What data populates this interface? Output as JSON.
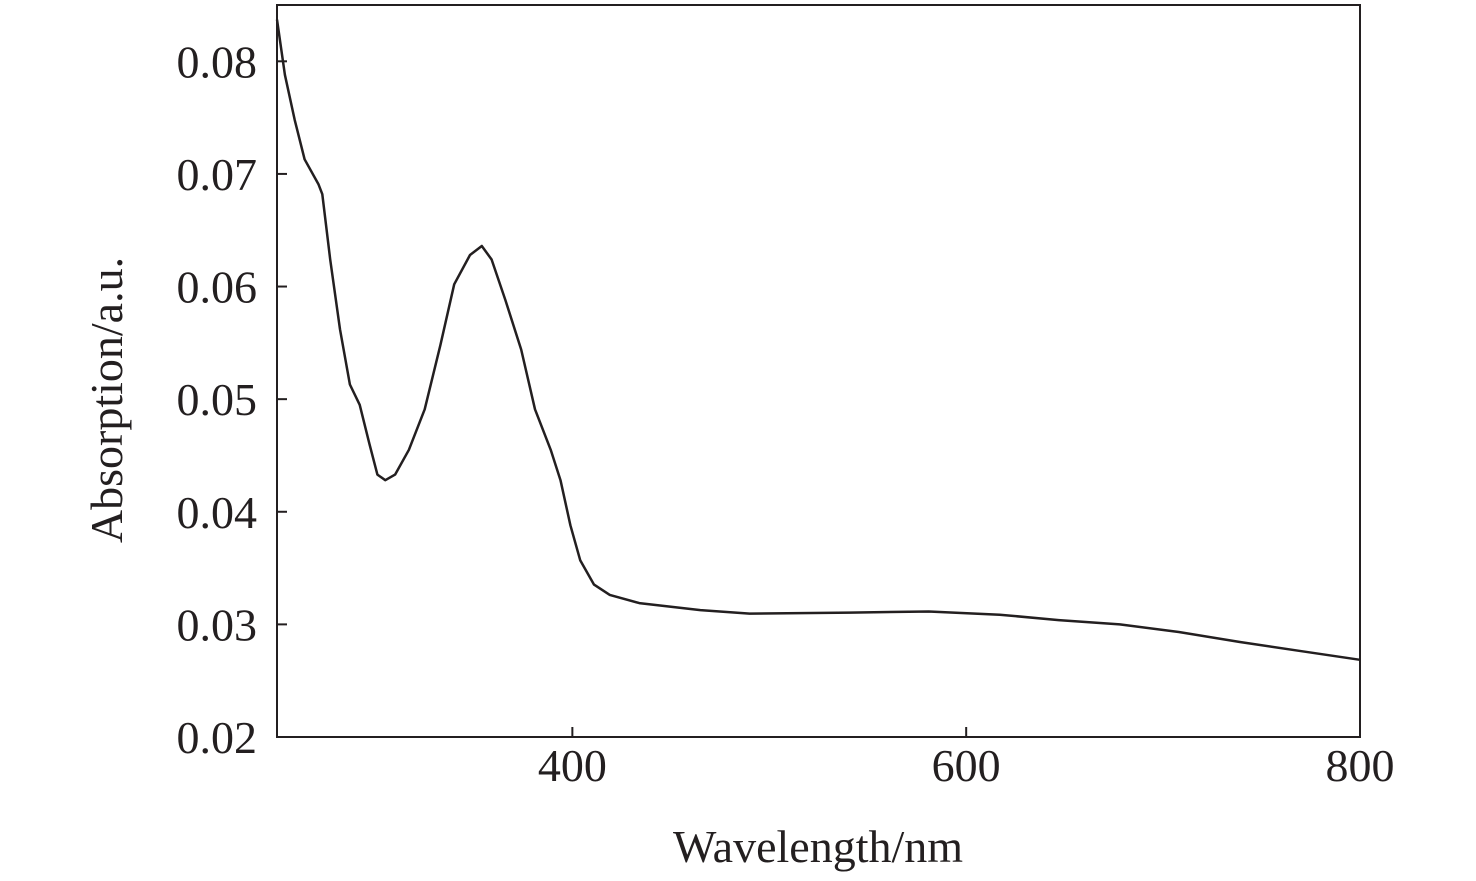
{
  "chart_data": {
    "type": "line",
    "title": "",
    "xlabel": "Wavelength/nm",
    "ylabel": "Absorption/a.u.",
    "xlim": [
      250,
      800
    ],
    "ylim": [
      0.02,
      0.085
    ],
    "xticks": [
      400,
      600,
      800
    ],
    "xtick_labels": [
      "400",
      "600",
      "800"
    ],
    "yticks": [
      0.02,
      0.03,
      0.04,
      0.05,
      0.06,
      0.07,
      0.08
    ],
    "ytick_labels": [
      "0.02",
      "0.03",
      "0.04",
      "0.05",
      "0.06",
      "0.07",
      "0.08"
    ],
    "grid": false,
    "series": [
      {
        "name": "absorption",
        "color": "#231f20",
        "x": [
          250,
          254,
          259,
          264,
          271,
          273,
          277,
          282,
          287,
          292,
          297,
          301,
          305,
          310,
          317,
          325,
          333,
          340,
          348,
          354,
          359,
          366,
          374,
          381,
          389,
          394,
          399,
          404,
          411,
          419,
          434,
          465,
          490,
          541,
          581,
          617,
          647,
          678,
          708,
          739,
          769,
          800
        ],
        "y": [
          0.0837,
          0.0788,
          0.0748,
          0.0713,
          0.0691,
          0.0682,
          0.0624,
          0.0562,
          0.0513,
          0.0495,
          0.046,
          0.0433,
          0.0428,
          0.0433,
          0.0455,
          0.0491,
          0.0548,
          0.0602,
          0.0628,
          0.0636,
          0.0624,
          0.0588,
          0.0544,
          0.0491,
          0.0455,
          0.0428,
          0.0388,
          0.0357,
          0.0335,
          0.0326,
          0.0319,
          0.0313,
          0.031,
          0.0311,
          0.0312,
          0.0309,
          0.0304,
          0.03,
          0.0293,
          0.0284,
          0.0276,
          0.0268
        ]
      }
    ]
  }
}
